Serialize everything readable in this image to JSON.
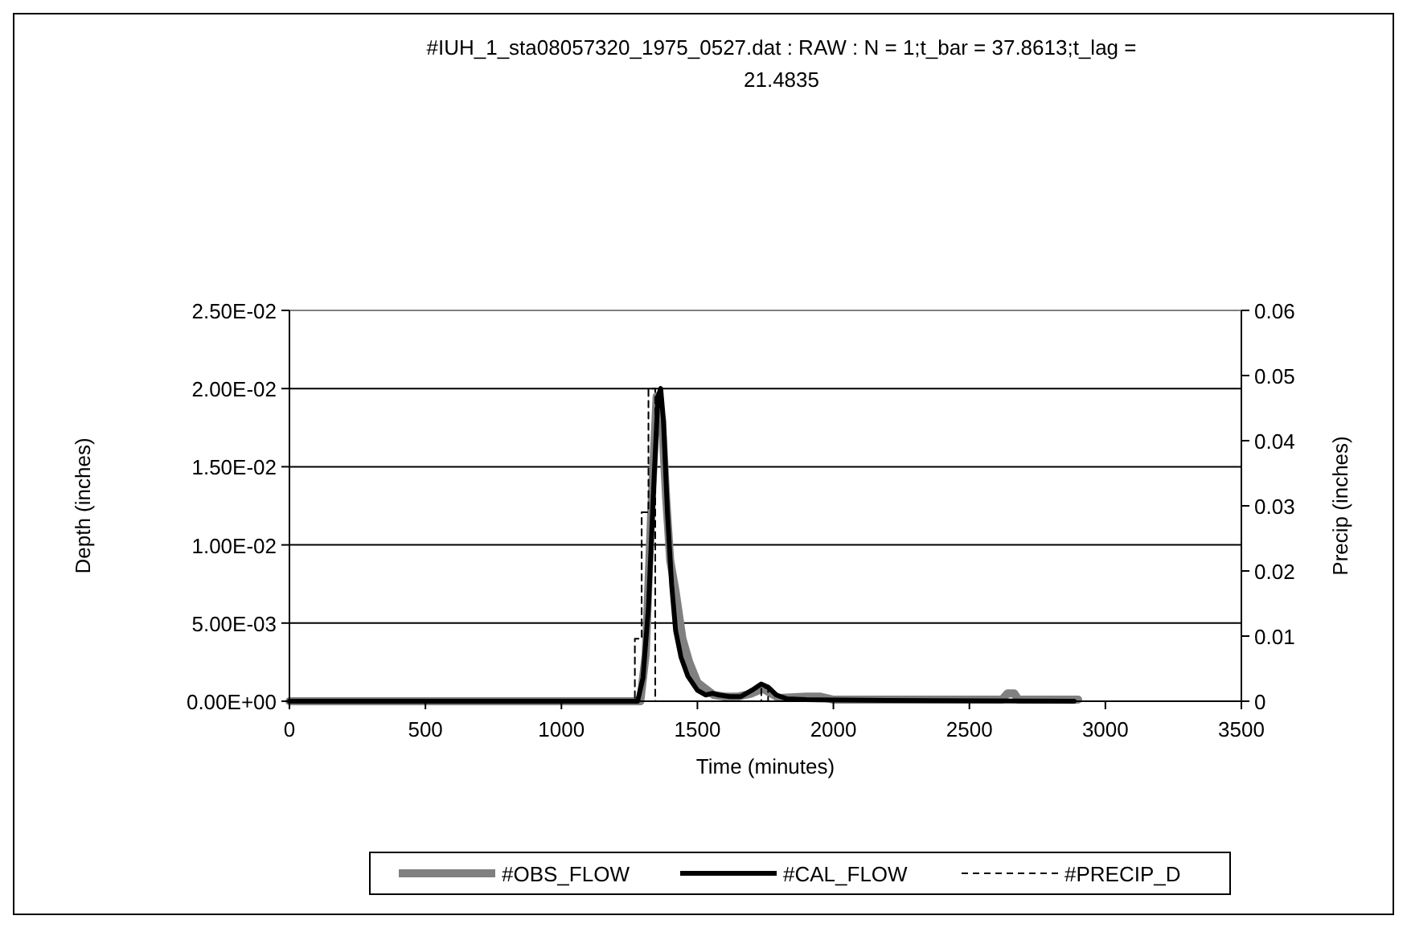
{
  "chart_data": {
    "type": "line",
    "title": "#IUH_1_sta08057320_1975_0527.dat : RAW : N = 1;t_bar = 37.8613;t_lag = 21.4835",
    "xlabel": "Time (minutes)",
    "ylabel": "Depth (inches)",
    "y2label": "Precip (inches)",
    "xlim": [
      0,
      3500
    ],
    "xticks": [
      0,
      500,
      1000,
      1500,
      2000,
      2500,
      3000,
      3500
    ],
    "ylim": [
      0,
      0.025
    ],
    "yticks": [
      {
        "value": 0,
        "label": "0.00E+00"
      },
      {
        "value": 0.005,
        "label": "5.00E-03"
      },
      {
        "value": 0.01,
        "label": "1.00E-02"
      },
      {
        "value": 0.015,
        "label": "1.50E-02"
      },
      {
        "value": 0.02,
        "label": "2.00E-02"
      },
      {
        "value": 0.025,
        "label": "2.50E-02"
      }
    ],
    "y2lim": [
      0,
      0.06
    ],
    "y2ticks": [
      0,
      0.01,
      0.02,
      0.03,
      0.04,
      0.05,
      0.06
    ],
    "grid": "y",
    "legend": "bottom",
    "series": [
      {
        "name": "#OBS_FLOW",
        "color": "#808080",
        "x": [
          0,
          1290,
          1310,
          1330,
          1350,
          1370,
          1385,
          1400,
          1420,
          1445,
          1470,
          1500,
          1530,
          1560,
          1600,
          1650,
          1700,
          1740,
          1770,
          1800,
          1900,
          1950,
          2000,
          2200,
          2400,
          2620,
          2640,
          2665,
          2680,
          2900
        ],
        "values": [
          0,
          0,
          0.003,
          0.012,
          0.0195,
          0.018,
          0.013,
          0.009,
          0.007,
          0.004,
          0.0025,
          0.0012,
          0.0008,
          0.0004,
          0.0003,
          0.0003,
          0.0005,
          0.0008,
          0.0005,
          0.0002,
          0.0003,
          0.0003,
          0.0001,
          0.0001,
          0.0001,
          0.0001,
          0.0005,
          0.0005,
          0.0001,
          0.0001
        ]
      },
      {
        "name": "#CAL_FLOW",
        "color": "#000000",
        "x": [
          0,
          1280,
          1300,
          1320,
          1340,
          1355,
          1365,
          1375,
          1390,
          1405,
          1420,
          1440,
          1465,
          1500,
          1530,
          1555,
          1580,
          1620,
          1660,
          1700,
          1735,
          1760,
          1790,
          1830,
          1900,
          2200,
          2885
        ],
        "values": [
          0,
          0,
          0.0015,
          0.006,
          0.014,
          0.0195,
          0.02,
          0.018,
          0.012,
          0.0075,
          0.0045,
          0.0028,
          0.0016,
          0.0007,
          0.0004,
          0.0005,
          0.0004,
          0.0003,
          0.0003,
          0.0007,
          0.0011,
          0.0009,
          0.0004,
          0.00015,
          0.0001,
          5e-05,
          0
        ]
      },
      {
        "name": "#PRECIP_D",
        "color": "#000000",
        "type": "step",
        "axis": "y2",
        "line_style": "dashed",
        "x": [
          0,
          1270,
          1295,
          1320,
          1345,
          1735,
          1760,
          2900
        ],
        "values": [
          0,
          0.0096,
          0.029,
          0.048,
          0,
          0.002,
          0,
          0
        ]
      }
    ]
  }
}
